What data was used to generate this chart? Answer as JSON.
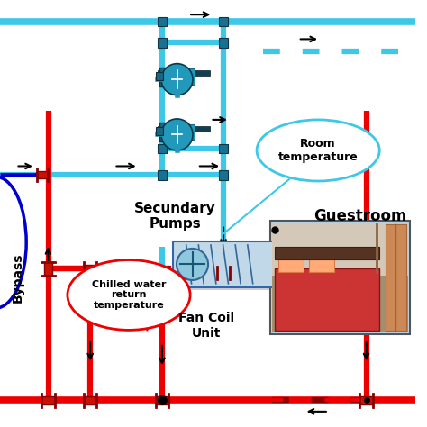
{
  "bg_color": "#ffffff",
  "cyan": "#3DC8E8",
  "cyan_dark": "#2299BB",
  "red": "#EE0000",
  "red_dark": "#AA0000",
  "blue": "#0000CC",
  "black": "#111111",
  "fitting_dark": "#1A5C70",
  "fitting_light": "#2299BB",
  "pump_body": "#2299BB",
  "pump_dark": "#15637A",
  "text_secondary_pumps": "Secundary\nPumps",
  "text_bypass": "Bypass",
  "text_fan_coil": "Fan Coil\nUnit",
  "text_guestroom": "Guestroom",
  "text_room_temp": "Room\ntemperature",
  "text_chilled_water": "Chilled water\nreturn\ntemperature",
  "lw_pipe": 4.5,
  "lw_fit": 1.5
}
